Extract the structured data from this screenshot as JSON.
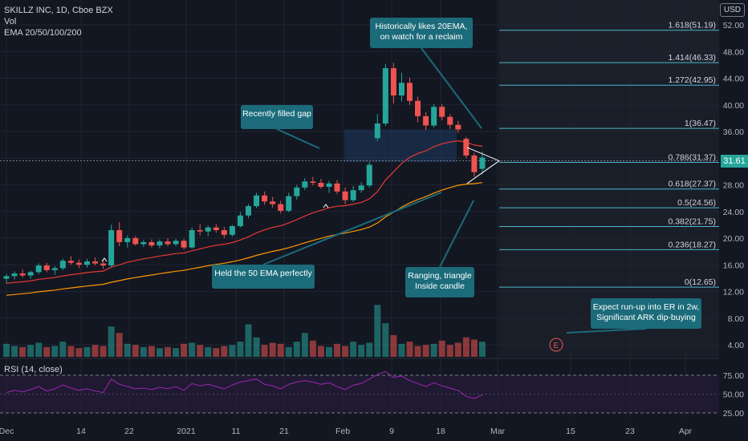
{
  "header": {
    "symbol": "SKILLZ INC, 1D, Cboe BZX",
    "vol_label": "Vol",
    "ema_label": "EMA 20/50/100/200",
    "rsi_label": "RSI (14, close)",
    "currency": "USD",
    "last_price": "31.61"
  },
  "colors": {
    "background": "#131722",
    "up": "#26a69a",
    "down": "#ef5350",
    "ema20": "#e53935",
    "ema50": "#ff9800",
    "fib_line": "#4db6c8",
    "annotation_bg": "#1b6b7a",
    "rsi_line": "#9c27b0"
  },
  "chart_data": {
    "type": "candlestick",
    "y_ticks": [
      "52.00",
      "48.00",
      "44.00",
      "40.00",
      "36.00",
      "32.00",
      "28.00",
      "24.00",
      "20.00",
      "16.00",
      "12.00",
      "8.00",
      "4.00"
    ],
    "rsi_ticks": [
      "75.00",
      "50.00",
      "25.00"
    ],
    "x_ticks": [
      "Dec",
      "14",
      "22",
      "2021",
      "11",
      "21",
      "Feb",
      "9",
      "18",
      "Mar",
      "15",
      "23",
      "Apr"
    ],
    "ylim": [
      0,
      54
    ],
    "candles": [
      {
        "d": "Dec 01",
        "o": 13.9,
        "h": 14.6,
        "l": 13.2,
        "c": 14.3
      },
      {
        "d": "Dec 02",
        "o": 14.3,
        "h": 15.0,
        "l": 13.8,
        "c": 14.7
      },
      {
        "d": "Dec 03",
        "o": 14.7,
        "h": 15.3,
        "l": 14.1,
        "c": 14.4
      },
      {
        "d": "Dec 04",
        "o": 14.4,
        "h": 15.1,
        "l": 13.9,
        "c": 14.9
      },
      {
        "d": "Dec 07",
        "o": 14.9,
        "h": 16.2,
        "l": 14.6,
        "c": 15.9
      },
      {
        "d": "Dec 08",
        "o": 15.9,
        "h": 16.3,
        "l": 14.9,
        "c": 15.2
      },
      {
        "d": "Dec 09",
        "o": 15.2,
        "h": 15.8,
        "l": 14.5,
        "c": 15.5
      },
      {
        "d": "Dec 10",
        "o": 15.5,
        "h": 16.9,
        "l": 15.2,
        "c": 16.6
      },
      {
        "d": "Dec 11",
        "o": 16.6,
        "h": 17.3,
        "l": 16.0,
        "c": 16.3
      },
      {
        "d": "Dec 14",
        "o": 16.3,
        "h": 16.8,
        "l": 15.5,
        "c": 16.0
      },
      {
        "d": "Dec 15",
        "o": 16.0,
        "h": 16.9,
        "l": 15.6,
        "c": 16.5
      },
      {
        "d": "Dec 16",
        "o": 16.5,
        "h": 17.1,
        "l": 15.9,
        "c": 16.2
      },
      {
        "d": "Dec 17",
        "o": 16.2,
        "h": 16.7,
        "l": 15.4,
        "c": 15.9
      },
      {
        "d": "Dec 18",
        "o": 15.9,
        "h": 22.0,
        "l": 15.6,
        "c": 21.2
      },
      {
        "d": "Dec 21",
        "o": 21.2,
        "h": 22.4,
        "l": 18.8,
        "c": 19.4
      },
      {
        "d": "Dec 22",
        "o": 19.4,
        "h": 20.4,
        "l": 18.6,
        "c": 20.0
      },
      {
        "d": "Dec 23",
        "o": 20.0,
        "h": 20.3,
        "l": 18.9,
        "c": 19.1
      },
      {
        "d": "Dec 24",
        "o": 19.1,
        "h": 19.7,
        "l": 18.7,
        "c": 19.4
      },
      {
        "d": "Dec 28",
        "o": 19.4,
        "h": 19.8,
        "l": 18.6,
        "c": 18.9
      },
      {
        "d": "Dec 29",
        "o": 18.9,
        "h": 19.8,
        "l": 18.5,
        "c": 19.5
      },
      {
        "d": "Dec 30",
        "o": 19.5,
        "h": 20.0,
        "l": 18.8,
        "c": 19.1
      },
      {
        "d": "Dec 31",
        "o": 19.1,
        "h": 19.9,
        "l": 18.8,
        "c": 19.6
      },
      {
        "d": "Jan 04",
        "o": 19.6,
        "h": 19.9,
        "l": 18.3,
        "c": 18.6
      },
      {
        "d": "Jan 05",
        "o": 18.6,
        "h": 21.6,
        "l": 18.4,
        "c": 21.2
      },
      {
        "d": "Jan 06",
        "o": 21.2,
        "h": 22.1,
        "l": 20.4,
        "c": 21.0
      },
      {
        "d": "Jan 07",
        "o": 21.0,
        "h": 21.9,
        "l": 20.3,
        "c": 21.6
      },
      {
        "d": "Jan 08",
        "o": 21.6,
        "h": 22.1,
        "l": 20.8,
        "c": 21.2
      },
      {
        "d": "Jan 11",
        "o": 21.2,
        "h": 21.7,
        "l": 20.0,
        "c": 20.5
      },
      {
        "d": "Jan 12",
        "o": 20.5,
        "h": 22.0,
        "l": 20.2,
        "c": 21.8
      },
      {
        "d": "Jan 13",
        "o": 21.8,
        "h": 23.9,
        "l": 21.6,
        "c": 23.4
      },
      {
        "d": "Jan 14",
        "o": 23.4,
        "h": 25.1,
        "l": 23.0,
        "c": 24.8
      },
      {
        "d": "Jan 15",
        "o": 24.8,
        "h": 26.8,
        "l": 24.5,
        "c": 26.4
      },
      {
        "d": "Jan 19",
        "o": 26.4,
        "h": 27.0,
        "l": 25.0,
        "c": 25.5
      },
      {
        "d": "Jan 20",
        "o": 25.5,
        "h": 26.2,
        "l": 24.6,
        "c": 25.1
      },
      {
        "d": "Jan 21",
        "o": 25.1,
        "h": 25.6,
        "l": 23.7,
        "c": 24.1
      },
      {
        "d": "Jan 22",
        "o": 24.1,
        "h": 26.8,
        "l": 23.9,
        "c": 26.3
      },
      {
        "d": "Jan 25",
        "o": 26.3,
        "h": 28.0,
        "l": 25.8,
        "c": 27.6
      },
      {
        "d": "Jan 26",
        "o": 27.6,
        "h": 29.0,
        "l": 27.2,
        "c": 28.5
      },
      {
        "d": "Jan 27",
        "o": 28.5,
        "h": 29.2,
        "l": 27.9,
        "c": 28.3
      },
      {
        "d": "Jan 28",
        "o": 28.3,
        "h": 28.9,
        "l": 27.4,
        "c": 27.7
      },
      {
        "d": "Jan 29",
        "o": 27.7,
        "h": 28.6,
        "l": 26.8,
        "c": 28.2
      },
      {
        "d": "Feb 01",
        "o": 28.2,
        "h": 28.7,
        "l": 26.6,
        "c": 27.0
      },
      {
        "d": "Feb 02",
        "o": 27.0,
        "h": 27.6,
        "l": 25.1,
        "c": 25.7
      },
      {
        "d": "Feb 03",
        "o": 25.7,
        "h": 27.8,
        "l": 25.4,
        "c": 27.2
      },
      {
        "d": "Feb 04",
        "o": 27.2,
        "h": 28.4,
        "l": 26.8,
        "c": 27.9
      },
      {
        "d": "Feb 05",
        "o": 27.9,
        "h": 31.4,
        "l": 27.6,
        "c": 31.0
      },
      {
        "d": "Feb 08",
        "o": 35.0,
        "h": 38.6,
        "l": 34.6,
        "c": 37.2
      },
      {
        "d": "Feb 09",
        "o": 37.2,
        "h": 46.1,
        "l": 36.8,
        "c": 45.5
      },
      {
        "d": "Feb 10",
        "o": 45.5,
        "h": 46.3,
        "l": 40.2,
        "c": 41.4
      },
      {
        "d": "Feb 11",
        "o": 41.4,
        "h": 44.8,
        "l": 40.5,
        "c": 43.3
      },
      {
        "d": "Feb 12",
        "o": 43.3,
        "h": 44.1,
        "l": 40.0,
        "c": 40.6
      },
      {
        "d": "Feb 16",
        "o": 40.6,
        "h": 41.2,
        "l": 37.4,
        "c": 38.3
      },
      {
        "d": "Feb 17",
        "o": 38.3,
        "h": 38.9,
        "l": 36.2,
        "c": 36.9
      },
      {
        "d": "Feb 18",
        "o": 36.9,
        "h": 40.1,
        "l": 36.6,
        "c": 39.7
      },
      {
        "d": "Feb 19",
        "o": 39.7,
        "h": 40.1,
        "l": 37.7,
        "c": 38.2
      },
      {
        "d": "Feb 22",
        "o": 38.2,
        "h": 38.6,
        "l": 36.4,
        "c": 37.0
      },
      {
        "d": "Feb 23",
        "o": 37.0,
        "h": 37.6,
        "l": 35.8,
        "c": 36.3
      },
      {
        "d": "Feb 24",
        "o": 34.9,
        "h": 35.2,
        "l": 32.0,
        "c": 32.4
      },
      {
        "d": "Feb 25",
        "o": 32.4,
        "h": 32.8,
        "l": 29.2,
        "c": 29.9
      },
      {
        "d": "Feb 26",
        "o": 30.4,
        "h": 33.0,
        "l": 29.6,
        "c": 32.1
      }
    ],
    "annotations": [
      "Historically likes 20EMA,\non watch for a reclaim",
      "Recently filled gap",
      "Held the 50 EMA perfectly",
      "Ranging, triangle\nInside candle",
      "Expect run-up into ER in 2w,\nSignificant ARK dip-buying"
    ],
    "fib_levels": [
      {
        "label": "1.618(51.19)",
        "value": 51.19
      },
      {
        "label": "1.414(46.33)",
        "value": 46.33
      },
      {
        "label": "1.272(42.95)",
        "value": 42.95
      },
      {
        "label": "1(36.47)",
        "value": 36.47
      },
      {
        "label": "0.786(31.37)",
        "value": 31.37
      },
      {
        "label": "0.618(27.37)",
        "value": 27.37
      },
      {
        "label": "0.5(24.56)",
        "value": 24.56
      },
      {
        "label": "0.382(21.75)",
        "value": 21.75
      },
      {
        "label": "0.236(18.27)",
        "value": 18.27
      },
      {
        "label": "0(12.65)",
        "value": 12.65
      }
    ],
    "earnings_marker": "E"
  }
}
